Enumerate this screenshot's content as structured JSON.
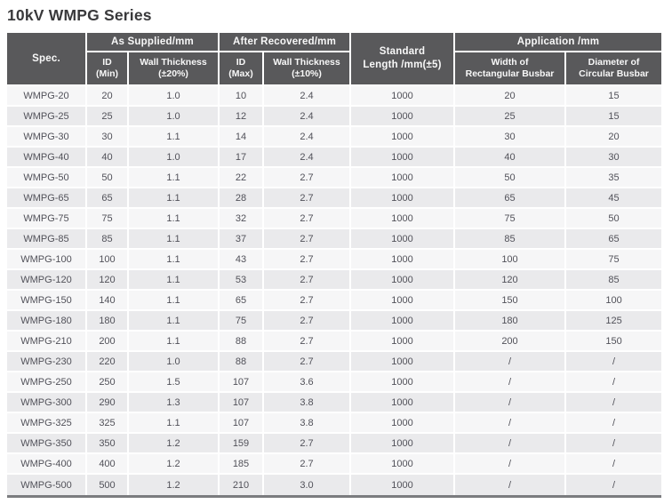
{
  "page_title": "10kV WMPG Series",
  "colors": {
    "header_bg": "#59595b",
    "header_text": "#f8f8f8",
    "row_odd_bg": "#f6f6f7",
    "row_even_bg": "#eaeaec",
    "cell_text": "#515159",
    "bottom_border": "#7b7c7f",
    "gridline": "#ffffff"
  },
  "table": {
    "headers": {
      "spec": "Spec.",
      "as_supplied": "As Supplied/mm",
      "after_recovered": "After Recovered/mm",
      "standard_length": "Standard\nLength /mm(±5)",
      "application": "Application /mm",
      "id_min": "ID\n(Min)",
      "wall_thickness_20": "Wall Thickness\n(±20%)",
      "id_max": "ID\n(Max)",
      "wall_thickness_10": "Wall Thickness\n(±10%)",
      "width_rectangular": "Width of\nRectangular Busbar",
      "diameter_circular": "Diameter of\nCircular Busbar"
    },
    "rows": [
      [
        "WMPG-20",
        "20",
        "1.0",
        "10",
        "2.4",
        "1000",
        "20",
        "15"
      ],
      [
        "WMPG-25",
        "25",
        "1.0",
        "12",
        "2.4",
        "1000",
        "25",
        "15"
      ],
      [
        "WMPG-30",
        "30",
        "1.1",
        "14",
        "2.4",
        "1000",
        "30",
        "20"
      ],
      [
        "WMPG-40",
        "40",
        "1.0",
        "17",
        "2.4",
        "1000",
        "40",
        "30"
      ],
      [
        "WMPG-50",
        "50",
        "1.1",
        "22",
        "2.7",
        "1000",
        "50",
        "35"
      ],
      [
        "WMPG-65",
        "65",
        "1.1",
        "28",
        "2.7",
        "1000",
        "65",
        "45"
      ],
      [
        "WMPG-75",
        "75",
        "1.1",
        "32",
        "2.7",
        "1000",
        "75",
        "50"
      ],
      [
        "WMPG-85",
        "85",
        "1.1",
        "37",
        "2.7",
        "1000",
        "85",
        "65"
      ],
      [
        "WMPG-100",
        "100",
        "1.1",
        "43",
        "2.7",
        "1000",
        "100",
        "75"
      ],
      [
        "WMPG-120",
        "120",
        "1.1",
        "53",
        "2.7",
        "1000",
        "120",
        "85"
      ],
      [
        "WMPG-150",
        "140",
        "1.1",
        "65",
        "2.7",
        "1000",
        "150",
        "100"
      ],
      [
        "WMPG-180",
        "180",
        "1.1",
        "75",
        "2.7",
        "1000",
        "180",
        "125"
      ],
      [
        "WMPG-210",
        "200",
        "1.1",
        "88",
        "2.7",
        "1000",
        "200",
        "150"
      ],
      [
        "WMPG-230",
        "220",
        "1.0",
        "88",
        "2.7",
        "1000",
        "/",
        "/"
      ],
      [
        "WMPG-250",
        "250",
        "1.5",
        "107",
        "3.6",
        "1000",
        "/",
        "/"
      ],
      [
        "WMPG-300",
        "290",
        "1.3",
        "107",
        "3.8",
        "1000",
        "/",
        "/"
      ],
      [
        "WMPG-325",
        "325",
        "1.1",
        "107",
        "3.8",
        "1000",
        "/",
        "/"
      ],
      [
        "WMPG-350",
        "350",
        "1.2",
        "159",
        "2.7",
        "1000",
        "/",
        "/"
      ],
      [
        "WMPG-400",
        "400",
        "1.2",
        "185",
        "2.7",
        "1000",
        "/",
        "/"
      ],
      [
        "WMPG-500",
        "500",
        "1.2",
        "210",
        "3.0",
        "1000",
        "/",
        "/"
      ]
    ]
  }
}
